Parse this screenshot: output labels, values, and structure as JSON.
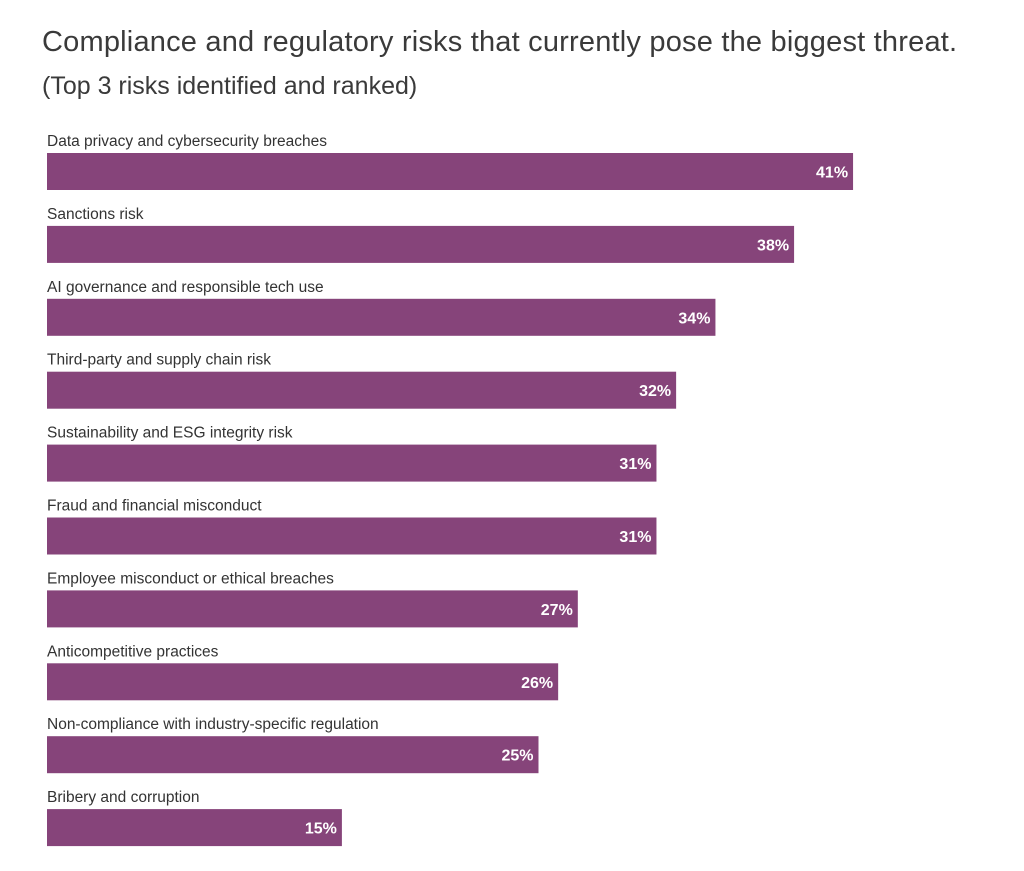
{
  "chart_data": {
    "type": "bar",
    "orientation": "horizontal",
    "title": "Compliance and regulatory risks that currently pose the biggest threat.",
    "subtitle": "(Top 3 risks identified and ranked)",
    "categories": [
      "Data privacy and cybersecurity breaches",
      "Sanctions risk",
      "AI governance and responsible tech use",
      "Third-party and supply chain risk",
      "Sustainability and ESG integrity risk",
      "Fraud and financial misconduct",
      "Employee misconduct or ethical breaches",
      "Anticompetitive practices",
      "Non-compliance with industry-specific regulation",
      "Bribery and corruption"
    ],
    "values": [
      41,
      38,
      34,
      32,
      31,
      31,
      27,
      26,
      25,
      15
    ],
    "value_labels": [
      "41%",
      "38%",
      "34%",
      "32%",
      "31%",
      "31%",
      "27%",
      "26%",
      "25%",
      "15%"
    ],
    "unit": "%",
    "grid": false,
    "legend": "none",
    "bar_color": "#86447a"
  }
}
